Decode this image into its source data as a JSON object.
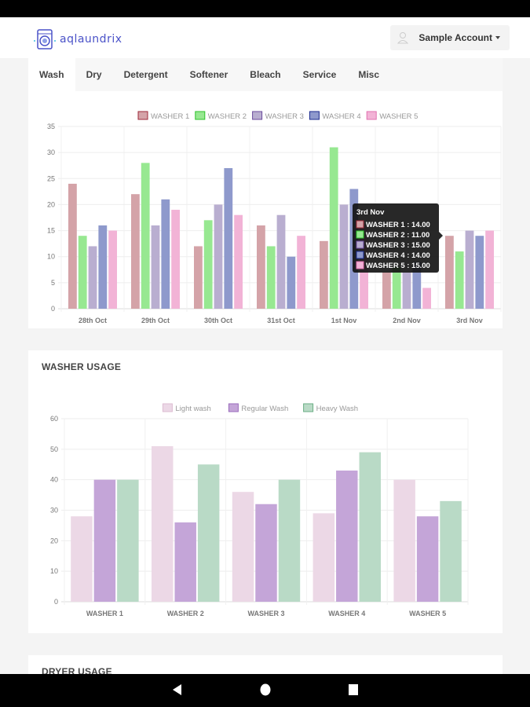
{
  "app": {
    "logo_text": "aqlaundrix",
    "account_label": "Sample Account"
  },
  "tabs": [
    {
      "label": "Wash",
      "active": true
    },
    {
      "label": "Dry",
      "active": false
    },
    {
      "label": "Detergent",
      "active": false
    },
    {
      "label": "Softener",
      "active": false
    },
    {
      "label": "Bleach",
      "active": false
    },
    {
      "label": "Service",
      "active": false
    },
    {
      "label": "Misc",
      "active": false
    }
  ],
  "washer_usage_title": "WASHER USAGE",
  "dryer_usage_title": "DRYER USAGE",
  "chart_data": [
    {
      "type": "bar",
      "title": "",
      "categories": [
        "28th Oct",
        "29th Oct",
        "30th Oct",
        "31st Oct",
        "1st Nov",
        "2nd Nov",
        "3rd Nov"
      ],
      "ylim": [
        0,
        35
      ],
      "yticks": [
        0,
        5,
        10,
        15,
        20,
        25,
        30,
        35
      ],
      "grid": true,
      "legend": "top",
      "series": [
        {
          "name": "WASHER 1",
          "color": "#d4a3a8",
          "border": "#9e2a3a",
          "values": [
            24,
            22,
            12,
            16,
            13,
            7,
            14
          ]
        },
        {
          "name": "WASHER 2",
          "color": "#97e891",
          "border": "#2ec22a",
          "values": [
            14,
            28,
            17,
            12,
            31,
            8,
            11
          ]
        },
        {
          "name": "WASHER 3",
          "color": "#b9aed0",
          "border": "#6a4a9c",
          "values": [
            12,
            16,
            20,
            18,
            20,
            7,
            15
          ]
        },
        {
          "name": "WASHER 4",
          "color": "#8e99cc",
          "border": "#1b2a8e",
          "values": [
            16,
            21,
            27,
            10,
            23,
            9,
            14
          ]
        },
        {
          "name": "WASHER 5",
          "color": "#f2b3d6",
          "border": "#e070b0",
          "values": [
            15,
            19,
            18,
            14,
            16,
            4,
            15
          ]
        }
      ],
      "tooltip": {
        "title": "3rd Nov",
        "lines": [
          "WASHER 1 : 14.00",
          "WASHER 2 : 11.00",
          "WASHER 3 : 15.00",
          "WASHER 4 : 14.00",
          "WASHER 5 : 15.00"
        ]
      }
    },
    {
      "type": "bar",
      "title": "WASHER USAGE",
      "categories": [
        "WASHER 1",
        "WASHER 2",
        "WASHER 3",
        "WASHER 4",
        "WASHER 5"
      ],
      "ylim": [
        0,
        60
      ],
      "yticks": [
        0,
        10,
        20,
        30,
        40,
        50,
        60
      ],
      "grid": true,
      "legend": "top",
      "series": [
        {
          "name": "Light wash",
          "color": "#ecd8e6",
          "border": "#dcbcd2",
          "values": [
            28,
            51,
            36,
            29,
            40
          ]
        },
        {
          "name": "Regular Wash",
          "color": "#c4a5d8",
          "border": "#9a6cbc",
          "values": [
            40,
            26,
            32,
            43,
            28
          ]
        },
        {
          "name": "Heavy Wash",
          "color": "#b9dac6",
          "border": "#6aae84",
          "values": [
            40,
            45,
            40,
            49,
            33
          ]
        }
      ]
    }
  ]
}
